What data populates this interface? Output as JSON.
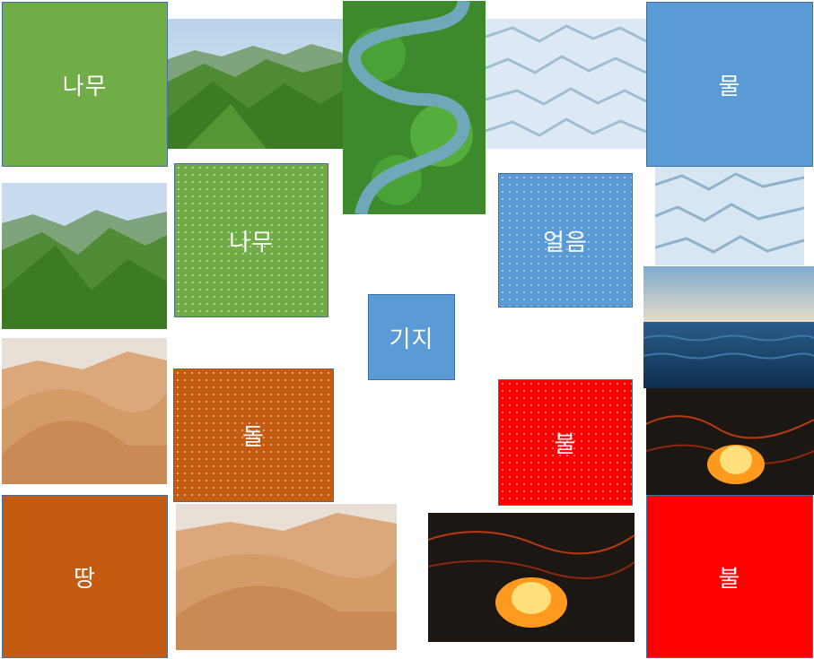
{
  "tiles": {
    "wood_top_left": "나무",
    "water_top_right": "물",
    "wood_pattern": "나무",
    "ice_pattern": "얼음",
    "base_center": "기지",
    "stone_pattern": "돌",
    "fire_pattern": "불",
    "earth_bottom_left": "땅",
    "fire_bottom_right": "불"
  },
  "colors": {
    "wood": "#70ad47",
    "water": "#5b9bd5",
    "stone": "#c55a11",
    "earth": "#c55a11",
    "fire": "#ff0000"
  }
}
